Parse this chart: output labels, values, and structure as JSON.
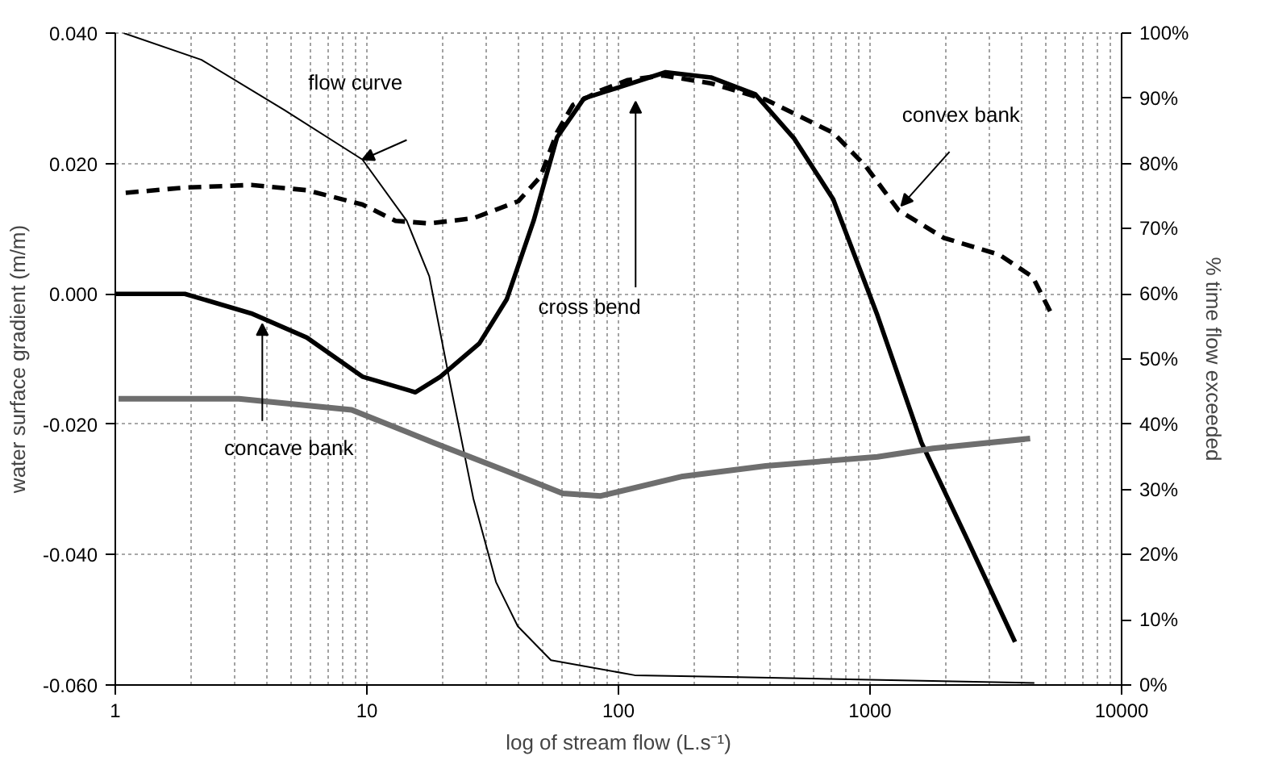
{
  "chart_data": {
    "type": "line",
    "xlabel": "log of stream flow (L.s⁻¹)",
    "ylabel": "water surface gradient (m/m)",
    "y2label": "% time flow exceeded",
    "log": "x",
    "grid": true,
    "marker": "none",
    "xlim": [
      1,
      10000
    ],
    "xticks": [
      1,
      10,
      100,
      1000,
      10000
    ],
    "ylim": [
      -0.06,
      0.04
    ],
    "yticks": [
      {
        "value": -0.06,
        "label": "-0.060"
      },
      {
        "value": -0.04,
        "label": "-0.040"
      },
      {
        "value": -0.02,
        "label": "-0.020"
      },
      {
        "value": 0,
        "label": "0.000"
      },
      {
        "value": 0.02,
        "label": "0.020"
      },
      {
        "value": 0.04,
        "label": "0.040"
      }
    ],
    "y2lim": [
      0,
      100
    ],
    "y2ticks": [
      {
        "value": 0,
        "label": "0%"
      },
      {
        "value": 10,
        "label": "10%"
      },
      {
        "value": 20,
        "label": "20%"
      },
      {
        "value": 30,
        "label": "30%"
      },
      {
        "value": 40,
        "label": "40%"
      },
      {
        "value": 50,
        "label": "50%"
      },
      {
        "value": 60,
        "label": "60%"
      },
      {
        "value": 70,
        "label": "70%"
      },
      {
        "value": 80,
        "label": "80%"
      },
      {
        "value": 90,
        "label": "90%"
      },
      {
        "value": 100,
        "label": "100%"
      }
    ],
    "series": [
      {
        "name": "flow curve",
        "color": "#000000",
        "axis": "y2",
        "line_style": "solid",
        "x": [
          1.08,
          2.2,
          4.7,
          9.6,
          14.4,
          17.7,
          21.6,
          26.5,
          32.6,
          39.8,
          53.9,
          116,
          300,
          1000,
          4500
        ],
        "values": [
          100,
          95.9,
          88.2,
          80.6,
          71.2,
          62.7,
          45.6,
          28.6,
          15.8,
          9,
          3.8,
          1.5,
          1.2,
          0.8,
          0.3
        ]
      },
      {
        "name": "convex bank",
        "color": "#000000",
        "line_style": "dashed",
        "x": [
          1.1,
          1.89,
          3.47,
          5.77,
          9.6,
          13,
          17.7,
          26.5,
          40,
          49,
          57,
          66,
          85,
          109,
          150,
          233,
          385,
          714,
          960,
          1300,
          1960,
          3270,
          4430,
          5300
        ],
        "values": [
          0.0155,
          0.0163,
          0.0167,
          0.0159,
          0.0137,
          0.0112,
          0.0108,
          0.0116,
          0.0142,
          0.018,
          0.0248,
          0.029,
          0.0312,
          0.0328,
          0.0335,
          0.0323,
          0.0298,
          0.0247,
          0.0196,
          0.0128,
          0.0086,
          0.006,
          0.0026,
          -0.0033
        ]
      },
      {
        "name": "cross bend",
        "color": "#000000",
        "line_style": "solid",
        "x": [
          1,
          1.89,
          3.47,
          5.77,
          9.6,
          15.6,
          19.6,
          28,
          36,
          46,
          57,
          73,
          99,
          154,
          233,
          350,
          500,
          714,
          1070,
          1600,
          2410,
          3770
        ],
        "values": [
          0,
          0,
          -0.003,
          -0.0067,
          -0.0127,
          -0.0151,
          -0.0127,
          -0.0076,
          -0.0008,
          0.0112,
          0.024,
          0.03,
          0.0316,
          0.034,
          0.0332,
          0.0306,
          0.0238,
          0.0145,
          -0.0033,
          -0.0228,
          -0.0373,
          -0.0534
        ]
      },
      {
        "name": "concave bank",
        "color": "#6e6e6e",
        "line_style": "solid",
        "x": [
          1.03,
          3.1,
          8.7,
          18.6,
          36,
          60,
          85,
          180,
          385,
          1070,
          1780,
          4330
        ],
        "values": [
          -0.0161,
          -0.0161,
          -0.0178,
          -0.0229,
          -0.0272,
          -0.0306,
          -0.031,
          -0.028,
          -0.0264,
          -0.025,
          -0.0237,
          -0.0222
        ]
      }
    ]
  }
}
